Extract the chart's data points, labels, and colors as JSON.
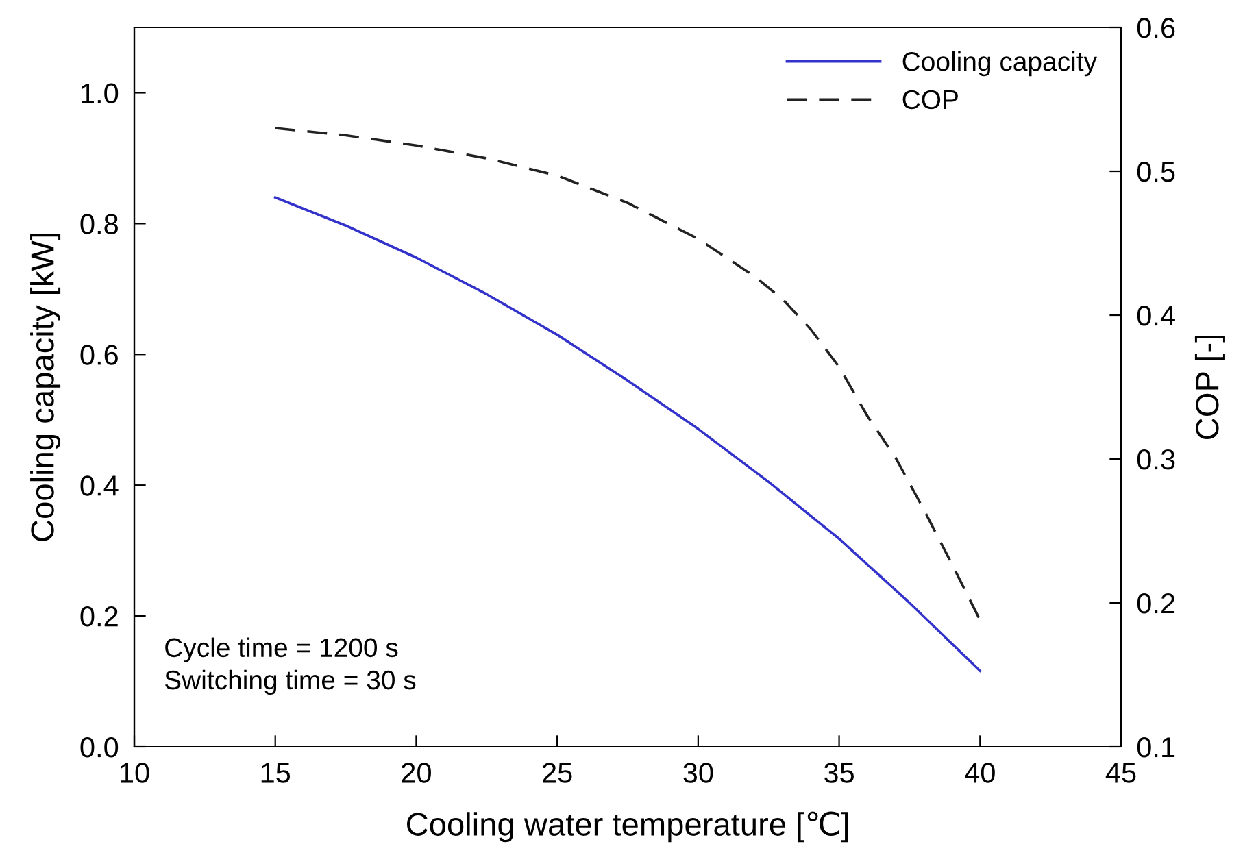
{
  "chart_data": {
    "type": "line",
    "xlabel": "Cooling water temperature [℃]",
    "ylabel": "Cooling capacity [kW]",
    "y2label": "COP [-]",
    "xlim": [
      10,
      45
    ],
    "xticks": [
      10,
      15,
      20,
      25,
      30,
      35,
      40,
      45
    ],
    "ylim": [
      0.0,
      1.1
    ],
    "yticks": [
      {
        "value": 0,
        "label": "0.0"
      },
      0.2,
      0.4,
      0.6,
      0.8,
      {
        "value": 1,
        "label": "1.0"
      }
    ],
    "y2lim": [
      0.1,
      0.6
    ],
    "y2ticks": [
      0.1,
      0.2,
      0.3,
      0.4,
      0.5,
      0.6
    ],
    "legend": "top right",
    "grid": false,
    "annotations": [
      "Cycle time = 1200 s",
      "Switching time = 30 s"
    ],
    "series": [
      {
        "name": "Cooling capacity",
        "color": "#3333cc",
        "line_style": "solid",
        "x": [
          15,
          17.5,
          20,
          22.5,
          25,
          27.5,
          30,
          32.5,
          35,
          37.5,
          40
        ],
        "values": [
          0.84,
          0.797,
          0.748,
          0.692,
          0.63,
          0.56,
          0.486,
          0.405,
          0.318,
          0.22,
          0.116
        ]
      },
      {
        "name": "COP",
        "color": "#222222",
        "line_style": "dashed",
        "axis": "y2",
        "x": [
          15,
          17.5,
          20,
          22.5,
          25,
          27.5,
          30,
          32,
          33,
          34,
          35,
          36,
          37,
          38,
          39,
          40
        ],
        "values": [
          0.53,
          0.525,
          0.518,
          0.509,
          0.497,
          0.478,
          0.453,
          0.427,
          0.411,
          0.39,
          0.364,
          0.33,
          0.301,
          0.265,
          0.227,
          0.188
        ]
      }
    ]
  }
}
